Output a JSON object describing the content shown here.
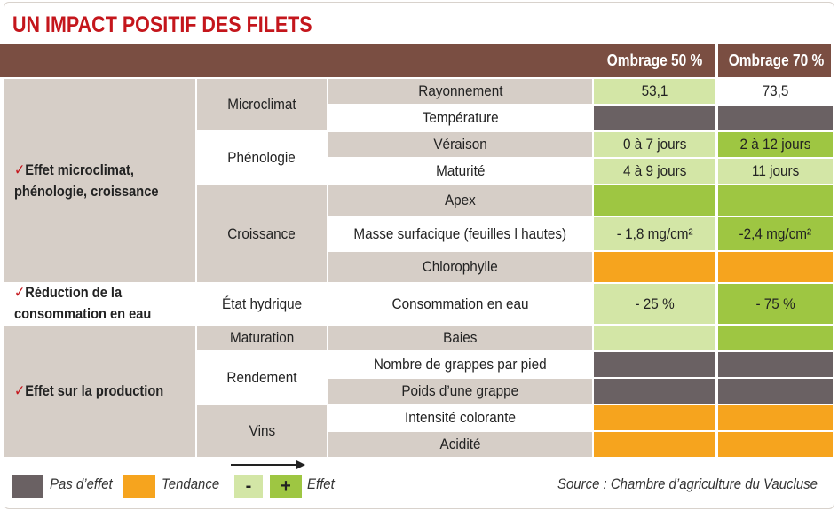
{
  "title": "UN IMPACT POSITIF DES FILETS",
  "headers": {
    "col1": "Ombrage 50 %",
    "col2": "Ombrage 70 %"
  },
  "sections": [
    {
      "label_line1": "Effet microclimat,",
      "label_line2": "phénologie, croissance"
    },
    {
      "label_line1": "Réduction de la",
      "label_line2": "consommation en eau"
    },
    {
      "label_line1": "Effet sur la production",
      "label_line2": ""
    }
  ],
  "groups": [
    "Microclimat",
    "Phénologie",
    "Croissance",
    "État hydrique",
    "Maturation",
    "Rendement",
    "Vins"
  ],
  "rows": [
    {
      "param": "Rayonnement",
      "v50": "53,1",
      "v70": "73,5",
      "c50": "lgreen",
      "c70": "white"
    },
    {
      "param": "Température",
      "v50": "",
      "v70": "",
      "c50": "dgray",
      "c70": "dgray"
    },
    {
      "param": "Véraison",
      "v50": "0 à 7 jours",
      "v70": "2 à 12 jours",
      "c50": "lgreen",
      "c70": "green"
    },
    {
      "param": "Maturité",
      "v50": "4 à 9 jours",
      "v70": "11 jours",
      "c50": "lgreen",
      "c70": "lgreen"
    },
    {
      "param": "Apex",
      "v50": "",
      "v70": "",
      "c50": "green",
      "c70": "green"
    },
    {
      "param": "Masse surfacique (feuilles l hautes)",
      "v50": "- 1,8 mg/cm²",
      "v70": "-2,4 mg/cm²",
      "c50": "lgreen",
      "c70": "green"
    },
    {
      "param": "Chlorophylle",
      "v50": "",
      "v70": "",
      "c50": "orange",
      "c70": "orange"
    },
    {
      "param": "Consommation en eau",
      "v50": "- 25 %",
      "v70": "- 75 %",
      "c50": "lgreen",
      "c70": "green"
    },
    {
      "param": "Baies",
      "v50": "",
      "v70": "",
      "c50": "lgreen",
      "c70": "green"
    },
    {
      "param": "Nombre de grappes par pied",
      "v50": "",
      "v70": "",
      "c50": "dgray",
      "c70": "dgray"
    },
    {
      "param": "Poids d’une grappe",
      "v50": "",
      "v70": "",
      "c50": "dgray",
      "c70": "dgray"
    },
    {
      "param": "Intensité colorante",
      "v50": "",
      "v70": "",
      "c50": "orange",
      "c70": "orange"
    },
    {
      "param": "Acidité",
      "v50": "",
      "v70": "",
      "c50": "orange",
      "c70": "orange"
    }
  ],
  "legend": {
    "no_effect": "Pas d’effet",
    "trend": "Tendance",
    "minus": "-",
    "plus": "+",
    "effect": "Effet"
  },
  "source": "Source : Chambre d’agriculture du Vaucluse",
  "colors": {
    "title_red": "#c4161c",
    "header_brown": "#7a4e42",
    "beige": "#d6cec7",
    "dark_gray": "#6a6163",
    "light_green": "#d3e6a6",
    "green": "#9ec642",
    "orange": "#f6a41e"
  }
}
